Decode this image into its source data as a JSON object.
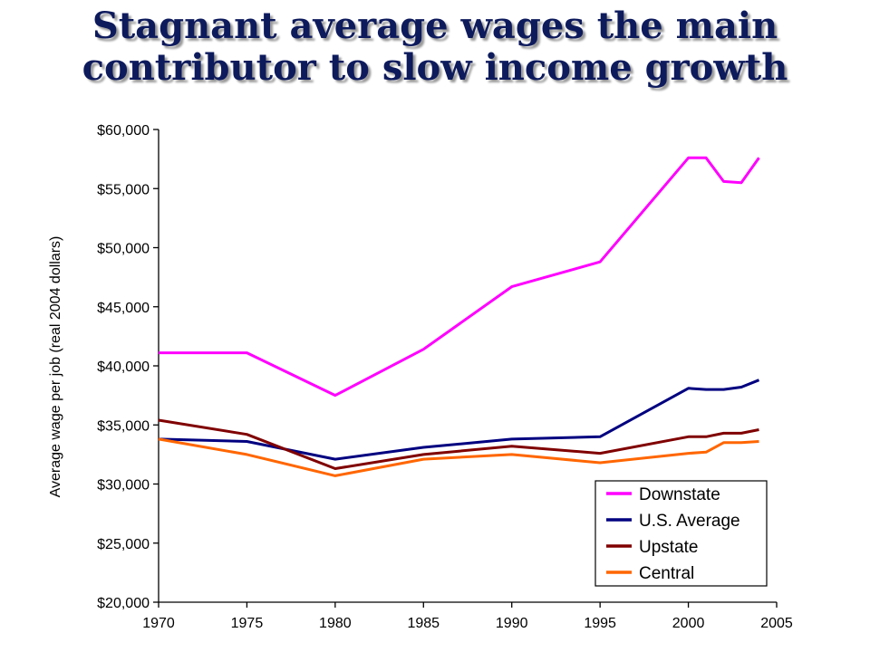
{
  "chart_data": {
    "type": "line",
    "title_lines": [
      "Stagnant average wages the main",
      "contributor to slow income growth"
    ],
    "xlabel": "",
    "ylabel": "Average wage per job (real 2004 dollars)",
    "xlim": [
      1970,
      2005
    ],
    "ylim": [
      20000,
      60000
    ],
    "x_ticks": [
      1970,
      1975,
      1980,
      1985,
      1990,
      1995,
      2000,
      2005
    ],
    "y_ticks": [
      20000,
      25000,
      30000,
      35000,
      40000,
      45000,
      50000,
      55000,
      60000
    ],
    "y_tick_labels": [
      "$20,000",
      "$25,000",
      "$30,000",
      "$35,000",
      "$40,000",
      "$45,000",
      "$50,000",
      "$55,000",
      "$60,000"
    ],
    "grid": false,
    "legend_position": "bottom-right",
    "series": [
      {
        "name": "Downstate",
        "color": "#ff00ff",
        "points": [
          [
            1970,
            41100
          ],
          [
            1975,
            41100
          ],
          [
            1980,
            37500
          ],
          [
            1985,
            41400
          ],
          [
            1990,
            46700
          ],
          [
            1995,
            48800
          ],
          [
            2000,
            57600
          ],
          [
            2001,
            57600
          ],
          [
            2002,
            55600
          ],
          [
            2003,
            55500
          ],
          [
            2004,
            57600
          ]
        ]
      },
      {
        "name": "U.S. Average",
        "color": "#000080",
        "points": [
          [
            1970,
            33800
          ],
          [
            1975,
            33600
          ],
          [
            1980,
            32100
          ],
          [
            1985,
            33100
          ],
          [
            1990,
            33800
          ],
          [
            1995,
            34000
          ],
          [
            2000,
            38100
          ],
          [
            2001,
            38000
          ],
          [
            2002,
            38000
          ],
          [
            2003,
            38200
          ],
          [
            2004,
            38800
          ]
        ]
      },
      {
        "name": "Upstate",
        "color": "#800000",
        "points": [
          [
            1970,
            35400
          ],
          [
            1975,
            34200
          ],
          [
            1980,
            31300
          ],
          [
            1985,
            32500
          ],
          [
            1990,
            33200
          ],
          [
            1995,
            32600
          ],
          [
            2000,
            34000
          ],
          [
            2001,
            34000
          ],
          [
            2002,
            34300
          ],
          [
            2003,
            34300
          ],
          [
            2004,
            34600
          ]
        ]
      },
      {
        "name": "Central",
        "color": "#ff6600",
        "points": [
          [
            1970,
            33800
          ],
          [
            1975,
            32500
          ],
          [
            1980,
            30700
          ],
          [
            1985,
            32100
          ],
          [
            1990,
            32500
          ],
          [
            1995,
            31800
          ],
          [
            2000,
            32600
          ],
          [
            2001,
            32700
          ],
          [
            2002,
            33500
          ],
          [
            2003,
            33500
          ],
          [
            2004,
            33600
          ]
        ]
      }
    ]
  }
}
